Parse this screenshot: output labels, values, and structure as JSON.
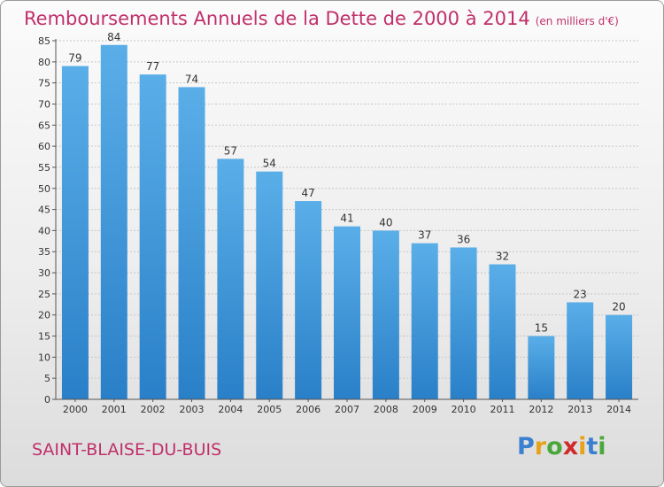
{
  "title": "Remboursements Annuels de la Dette de 2000 à 2014",
  "subtitle": "(en milliers d'€)",
  "commune": "SAINT-BLAISE-DU-BUIS",
  "logo": {
    "letters": [
      "P",
      "r",
      "o",
      "x",
      "i",
      "t",
      "i"
    ],
    "colors": [
      "#3a7fd0",
      "#e8a21a",
      "#4aa83a",
      "#d02a2a",
      "#e8a21a",
      "#3a7fd0",
      "#4aa83a"
    ]
  },
  "colors": {
    "accent": "#c0306a",
    "bar_top": "#5aaee8",
    "bar_bottom": "#2a80c8"
  },
  "chart_data": {
    "type": "bar",
    "title": "Remboursements Annuels de la Dette de 2000 à 2014",
    "xlabel": "",
    "ylabel": "",
    "categories": [
      "2000",
      "2001",
      "2002",
      "2003",
      "2004",
      "2005",
      "2006",
      "2007",
      "2008",
      "2009",
      "2010",
      "2011",
      "2012",
      "2013",
      "2014"
    ],
    "values": [
      79,
      84,
      77,
      74,
      57,
      54,
      47,
      41,
      40,
      37,
      36,
      32,
      15,
      23,
      20
    ],
    "ylim": [
      0,
      85
    ],
    "yticks": [
      0,
      5,
      10,
      15,
      20,
      25,
      30,
      35,
      40,
      45,
      50,
      55,
      60,
      65,
      70,
      75,
      80,
      85
    ],
    "grid": true,
    "legend": "none"
  }
}
